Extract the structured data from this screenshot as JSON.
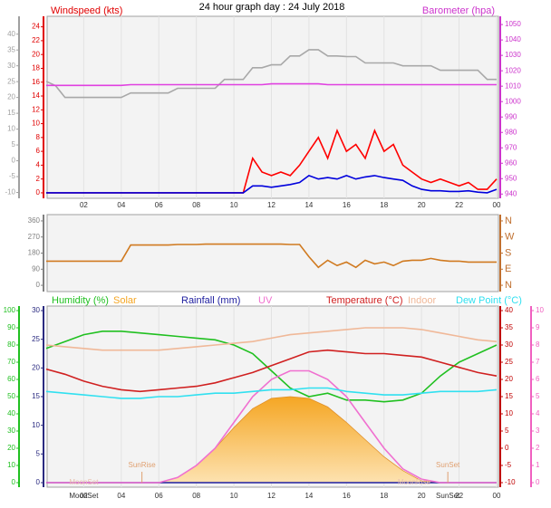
{
  "chart_data": [
    {
      "type": "line",
      "title": "24 hour graph day : 24 July 2018",
      "x": [
        0,
        0.5,
        1,
        1.5,
        2,
        2.5,
        3,
        3.5,
        4,
        4.5,
        5,
        5.5,
        6,
        6.5,
        7,
        7.5,
        8,
        8.5,
        9,
        9.5,
        10,
        10.5,
        11,
        11.5,
        12,
        12.5,
        13,
        13.5,
        14,
        14.5,
        15,
        15.5,
        16,
        16.5,
        17,
        17.5,
        18,
        18.5,
        19,
        19.5,
        20,
        20.5,
        21,
        21.5,
        22,
        22.5,
        23,
        23.5,
        24
      ],
      "xlim": [
        0,
        24
      ],
      "xticks": [
        {
          "value": 2,
          "label": "02"
        },
        {
          "value": 4,
          "label": "04"
        },
        {
          "value": 6,
          "label": "06"
        },
        {
          "value": 8,
          "label": "08"
        },
        {
          "value": 10,
          "label": "10"
        },
        12,
        14,
        16,
        18,
        20,
        22,
        {
          "value": 24,
          "label": "00"
        }
      ],
      "axes": [
        {
          "name": "Windspeed (kts)",
          "color": "#e00000",
          "lim": [
            -0.4,
            25
          ],
          "ticks": [
            0,
            2,
            4,
            6,
            8,
            10,
            12,
            14,
            16,
            18,
            20,
            22,
            24
          ],
          "side": "left"
        },
        {
          "color": "#a0a0a0",
          "lim": [
            -11,
            44.5
          ],
          "ticks": [
            -10,
            -5,
            0,
            5,
            10,
            15,
            20,
            25,
            30,
            35,
            40
          ],
          "side": "left"
        },
        {
          "name": "Barometer (hpa)",
          "color": "#cc33cc",
          "lim": [
            939,
            1053
          ],
          "ticks": [
            940,
            950,
            960,
            970,
            980,
            990,
            1000,
            1010,
            1020,
            1030,
            1040,
            1050
          ],
          "side": "right"
        }
      ],
      "series": [
        {
          "color": "#a8a8a8",
          "axis": 1,
          "values": [
            25.1,
            23.7,
            20,
            20,
            20,
            20,
            20,
            20,
            20,
            21.4,
            21.4,
            21.4,
            21.4,
            21.4,
            22.9,
            22.9,
            22.9,
            22.9,
            22.9,
            25.7,
            25.7,
            25.7,
            29.4,
            29.4,
            30.3,
            30.3,
            33.1,
            33.1,
            35.1,
            35.1,
            33.1,
            33.1,
            32.9,
            32.9,
            30.9,
            30.9,
            30.9,
            30.9,
            30,
            30,
            30,
            30,
            28.6,
            28.6,
            28.6,
            28.6,
            28.6,
            25.7,
            25.7
          ]
        },
        {
          "color": "#e040e0",
          "axis": 2,
          "values": [
            1010.5,
            1010.5,
            1010.5,
            1010.5,
            1010.5,
            1010.5,
            1010.5,
            1010.5,
            1010.5,
            1011,
            1011,
            1011,
            1011,
            1011,
            1011,
            1011,
            1011,
            1011,
            1011,
            1011,
            1011,
            1011,
            1011,
            1011,
            1011.5,
            1011.5,
            1011.5,
            1011.5,
            1011.5,
            1011.5,
            1011,
            1011,
            1011,
            1011,
            1011,
            1011,
            1011,
            1011,
            1011,
            1011,
            1011,
            1011,
            1011,
            1011,
            1011,
            1011,
            1011,
            1011,
            1011
          ]
        },
        {
          "color": "#ff0000",
          "axis": 0,
          "values": [
            0,
            0,
            0,
            0,
            0,
            0,
            0,
            0,
            0,
            0,
            0,
            0,
            0,
            0,
            0,
            0,
            0,
            0,
            0,
            0,
            0,
            0,
            5,
            3,
            2.5,
            3,
            2.5,
            4,
            6,
            8,
            5,
            9,
            6,
            7,
            5,
            9,
            6,
            7,
            4,
            3,
            2,
            1.5,
            2,
            1.5,
            1,
            1.5,
            0.5,
            0.5,
            2
          ]
        },
        {
          "color": "#0000dd",
          "axis": 0,
          "values": [
            0,
            0,
            0,
            0,
            0,
            0,
            0,
            0,
            0,
            0,
            0,
            0,
            0,
            0,
            0,
            0,
            0,
            0,
            0,
            0,
            0,
            0,
            1,
            1,
            0.8,
            1,
            1.2,
            1.5,
            2.5,
            2,
            2.2,
            2,
            2.5,
            2,
            2.3,
            2.5,
            2.2,
            2,
            1.8,
            1,
            0.5,
            0.3,
            0.3,
            0.2,
            0.2,
            0.3,
            0.1,
            0,
            0.5
          ]
        }
      ]
    },
    {
      "type": "line",
      "x": [
        0,
        0.5,
        1,
        1.5,
        2,
        2.5,
        3,
        3.5,
        4,
        4.5,
        5,
        5.5,
        6,
        6.5,
        7,
        7.5,
        8,
        8.5,
        9,
        9.5,
        10,
        10.5,
        11,
        11.5,
        12,
        12.5,
        13,
        13.5,
        14,
        14.5,
        15,
        15.5,
        16,
        16.5,
        17,
        17.5,
        18,
        18.5,
        19,
        19.5,
        20,
        20.5,
        21,
        21.5,
        22,
        22.5,
        23,
        23.5,
        24
      ],
      "xlim": [
        0,
        24
      ],
      "axes": [
        {
          "color": "#808080",
          "lim": [
            -25,
            380
          ],
          "ticks": [
            0,
            90,
            180,
            270,
            360
          ],
          "side": "left"
        },
        {
          "color": "#c07030",
          "lim": [
            -25,
            380
          ],
          "ticks": [
            {
              "value": 360,
              "label": "N"
            },
            {
              "value": 270,
              "label": "W"
            },
            {
              "value": 180,
              "label": "S"
            },
            {
              "value": 90,
              "label": "E"
            },
            {
              "value": 0,
              "label": "N"
            }
          ],
          "side": "right"
        }
      ],
      "series": [
        {
          "color": "#d07a20",
          "axis": 0,
          "values": [
            135,
            135,
            135,
            135,
            135,
            135,
            135,
            135,
            135,
            225,
            225,
            225,
            225,
            225,
            228,
            228,
            228,
            230,
            230,
            230,
            230,
            230,
            230,
            230,
            230,
            230,
            228,
            228,
            160,
            100,
            140,
            110,
            130,
            100,
            140,
            120,
            130,
            110,
            135,
            140,
            140,
            150,
            140,
            135,
            135,
            130,
            130,
            130,
            130
          ]
        }
      ]
    },
    {
      "type": "line",
      "x": [
        0,
        1,
        2,
        3,
        4,
        5,
        6,
        7,
        8,
        9,
        10,
        11,
        12,
        13,
        14,
        15,
        16,
        17,
        18,
        19,
        20,
        21,
        22,
        23,
        24
      ],
      "xlim": [
        0,
        24
      ],
      "xticks": [
        {
          "value": 2,
          "label": "02"
        },
        {
          "value": 4,
          "label": "04"
        },
        {
          "value": 6,
          "label": "06"
        },
        {
          "value": 8,
          "label": "08"
        },
        {
          "value": 10,
          "label": "10"
        },
        12,
        14,
        16,
        18,
        20,
        22,
        {
          "value": 24,
          "label": "00"
        }
      ],
      "axes": [
        {
          "color": "#2a2a80",
          "lim": [
            0,
            30
          ],
          "ticks": [
            0,
            5,
            10,
            15,
            20,
            25,
            30
          ],
          "side": "left"
        },
        {
          "color": "#20c020",
          "lim": [
            0,
            100
          ],
          "ticks": [
            0,
            10,
            20,
            30,
            40,
            50,
            60,
            70,
            80,
            90,
            100
          ],
          "side": "left"
        },
        {
          "color": "#c00000",
          "lim": [
            -10,
            40
          ],
          "ticks": [
            -10,
            -5,
            0,
            5,
            10,
            15,
            20,
            25,
            30,
            35,
            40
          ],
          "side": "right"
        },
        {
          "color": "#f060c0",
          "lim": [
            0,
            10
          ],
          "ticks": [
            0,
            1,
            2,
            3,
            4,
            5,
            6,
            7,
            8,
            9,
            10
          ],
          "side": "right"
        },
        {
          "color": "#f5a623",
          "lim": [
            0,
            1000
          ],
          "ticks": []
        }
      ],
      "series": [
        {
          "name": "Humidity (%)",
          "color": "#20c020",
          "axis": 1,
          "values": [
            78,
            82,
            86,
            88,
            88,
            87,
            86,
            85,
            84,
            83,
            80,
            75,
            65,
            55,
            50,
            52,
            48,
            48,
            47,
            48,
            52,
            62,
            70,
            75,
            80
          ]
        },
        {
          "name": "Solar",
          "color": "#f5a623",
          "axis": 4,
          "type": "area",
          "values": [
            0,
            0,
            0,
            0,
            0,
            0,
            0,
            30,
            100,
            200,
            320,
            430,
            490,
            500,
            490,
            440,
            350,
            250,
            150,
            70,
            10,
            0,
            0,
            0,
            0
          ]
        },
        {
          "name": "Rainfall (mm)",
          "color": "#2020a0",
          "axis": 0,
          "values": [
            0,
            0,
            0,
            0,
            0,
            0,
            0,
            0,
            0,
            0,
            0,
            0,
            0,
            0,
            0,
            0,
            0,
            0,
            0,
            0,
            0,
            0,
            0,
            0,
            0
          ]
        },
        {
          "name": "UV",
          "color": "#f070d0",
          "axis": 3,
          "values": [
            0,
            0,
            0,
            0,
            0,
            0,
            0,
            0.3,
            1,
            2,
            3.5,
            5,
            6,
            6.5,
            6.5,
            6,
            5,
            3.5,
            2,
            0.8,
            0.2,
            0,
            0,
            0,
            0
          ]
        },
        {
          "name": "Temperature (°C)",
          "color": "#d02020",
          "axis": 2,
          "values": [
            23,
            21.5,
            19.5,
            18,
            17,
            16.5,
            17,
            17.5,
            18,
            19,
            20.5,
            22,
            24,
            26,
            28,
            28.5,
            28,
            27.5,
            27.5,
            27,
            26.5,
            25,
            23.5,
            22,
            21
          ]
        },
        {
          "name": "Indoor",
          "color": "#f0b898",
          "axis": 2,
          "values": [
            30,
            29.5,
            29,
            28.5,
            28.5,
            28.5,
            28.5,
            29,
            29.5,
            30,
            30.5,
            31,
            32,
            33,
            33.5,
            34,
            34.5,
            35,
            35,
            35,
            34.5,
            33.5,
            32.5,
            31.5,
            31
          ]
        },
        {
          "name": "Dew Point (°C)",
          "color": "#30e0f0",
          "axis": 2,
          "values": [
            16.5,
            16,
            15.5,
            15,
            14.5,
            14.5,
            15,
            15,
            15.5,
            16,
            16,
            16.5,
            17,
            17,
            17.5,
            17.5,
            16.5,
            16,
            15.5,
            15.5,
            16,
            16.5,
            16.5,
            16.5,
            17
          ]
        }
      ],
      "annotations": [
        {
          "text": "SunRise",
          "x": 5.1,
          "color": "#e0a070"
        },
        {
          "text": "SunSet",
          "x": 21.4,
          "color": "#e0a070"
        },
        {
          "text": "MoonSet",
          "x": 2.0,
          "color": "#e8c0b0"
        },
        {
          "text": "MoonRise",
          "x": 19.6,
          "color": "#e8c0b0"
        }
      ],
      "x_events": [
        {
          "label": "MoonSet",
          "value": 2.0
        },
        {
          "label": "SunSet",
          "value": 21.4
        }
      ]
    }
  ]
}
